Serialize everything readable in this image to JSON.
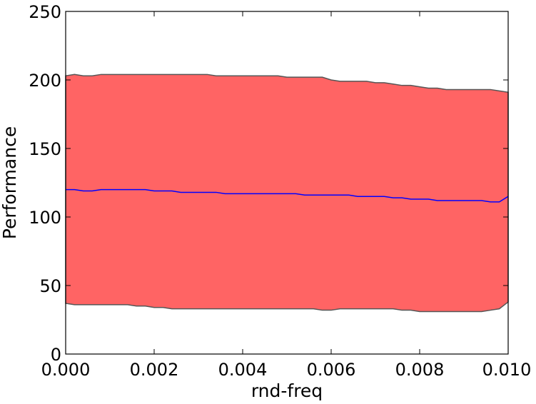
{
  "chart_data": {
    "type": "area",
    "title": "",
    "xlabel": "rnd-freq",
    "ylabel": "Performance",
    "xlim": [
      0.0,
      0.01
    ],
    "ylim": [
      0,
      250
    ],
    "grid": false,
    "x_ticks": [
      "0.000",
      "0.002",
      "0.004",
      "0.006",
      "0.008",
      "0.010"
    ],
    "y_ticks": [
      "0",
      "50",
      "100",
      "150",
      "200",
      "250"
    ],
    "x_tick_values": [
      0.0,
      0.002,
      0.004,
      0.006,
      0.008,
      0.01
    ],
    "y_tick_values": [
      0,
      50,
      100,
      150,
      200,
      250
    ],
    "colors": {
      "band": "#ff6464",
      "band_edge": "#555555",
      "mean_line": "#0000ff"
    },
    "x": [
      0.0,
      0.0002,
      0.0004,
      0.0006,
      0.0008,
      0.001,
      0.0012,
      0.0014,
      0.0016,
      0.0018,
      0.002,
      0.0022,
      0.0024,
      0.0026,
      0.0028,
      0.003,
      0.0032,
      0.0034,
      0.0036,
      0.0038,
      0.004,
      0.0042,
      0.0044,
      0.0046,
      0.0048,
      0.005,
      0.0052,
      0.0054,
      0.0056,
      0.0058,
      0.006,
      0.0062,
      0.0064,
      0.0066,
      0.0068,
      0.007,
      0.0072,
      0.0074,
      0.0076,
      0.0078,
      0.008,
      0.0082,
      0.0084,
      0.0086,
      0.0088,
      0.009,
      0.0092,
      0.0094,
      0.0096,
      0.0098,
      0.01
    ],
    "series": [
      {
        "role": "upper",
        "values": [
          203,
          204,
          203,
          203,
          204,
          204,
          204,
          204,
          204,
          204,
          204,
          204,
          204,
          204,
          204,
          204,
          204,
          203,
          203,
          203,
          203,
          203,
          203,
          203,
          203,
          202,
          202,
          202,
          202,
          202,
          200,
          199,
          199,
          199,
          199,
          198,
          198,
          197,
          196,
          196,
          195,
          194,
          194,
          193,
          193,
          193,
          193,
          193,
          193,
          192,
          191
        ]
      },
      {
        "role": "mean",
        "values": [
          120,
          120,
          119,
          119,
          120,
          120,
          120,
          120,
          120,
          120,
          119,
          119,
          119,
          118,
          118,
          118,
          118,
          118,
          117,
          117,
          117,
          117,
          117,
          117,
          117,
          117,
          117,
          116,
          116,
          116,
          116,
          116,
          116,
          115,
          115,
          115,
          115,
          114,
          114,
          113,
          113,
          113,
          112,
          112,
          112,
          112,
          112,
          112,
          111,
          111,
          115
        ]
      },
      {
        "role": "lower",
        "values": [
          37,
          36,
          36,
          36,
          36,
          36,
          36,
          36,
          35,
          35,
          34,
          34,
          33,
          33,
          33,
          33,
          33,
          33,
          33,
          33,
          33,
          33,
          33,
          33,
          33,
          33,
          33,
          33,
          33,
          32,
          32,
          33,
          33,
          33,
          33,
          33,
          33,
          33,
          32,
          32,
          31,
          31,
          31,
          31,
          31,
          31,
          31,
          31,
          32,
          33,
          38
        ]
      }
    ]
  }
}
